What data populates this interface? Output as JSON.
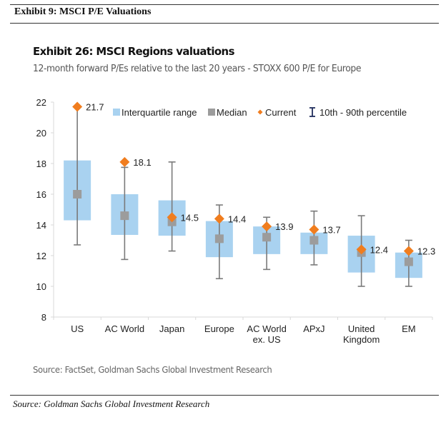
{
  "document": {
    "exhibit_title": "Exhibit 9: MSCI P/E Valuations",
    "source": "Source: Goldman Sachs Global Investment Research"
  },
  "chart_data": {
    "type": "box",
    "title": "Exhibit 26: MSCI Regions valuations",
    "subtitle": "12-month forward P/Es relative to the last 20 years - STOXX 600 P/E for Europe",
    "source": "Source: FactSet, Goldman Sachs Global Investment Research",
    "xlabel": "",
    "ylabel": "",
    "ylim": [
      8,
      22
    ],
    "yticks": [
      "22",
      "20",
      "18",
      "16",
      "14",
      "12",
      "10",
      "8"
    ],
    "ytick_values": [
      22,
      20,
      18,
      16,
      14,
      12,
      10,
      8
    ],
    "grid": false,
    "legend": {
      "placement": "top",
      "items": [
        {
          "label": "Interquartile range",
          "marker": "square",
          "color": "#a9d2f0"
        },
        {
          "label": "Median",
          "marker": "square",
          "color": "#9c9c9c"
        },
        {
          "label": "Current",
          "marker": "diamond",
          "color": "#f07d1e"
        },
        {
          "label": "10th - 90th percentile",
          "marker": "i-beam",
          "color": "#1f2d5c"
        }
      ]
    },
    "categories": [
      [
        "US"
      ],
      [
        "AC World"
      ],
      [
        "Japan"
      ],
      [
        "Europe"
      ],
      [
        "AC World",
        "ex. US"
      ],
      [
        "APxJ"
      ],
      [
        "United",
        "Kingdom"
      ],
      [
        "EM"
      ]
    ],
    "series": [
      {
        "name": "10th percentile",
        "values": [
          12.7,
          11.75,
          12.3,
          10.5,
          11.1,
          11.4,
          10.0,
          10.0
        ]
      },
      {
        "name": "Interquartile low (25th)",
        "values": [
          14.3,
          13.35,
          13.3,
          11.9,
          12.1,
          12.1,
          10.9,
          10.55
        ]
      },
      {
        "name": "Median",
        "values": [
          16.0,
          14.6,
          14.2,
          13.1,
          13.2,
          13.0,
          12.2,
          11.6
        ]
      },
      {
        "name": "Interquartile high (75th)",
        "values": [
          18.2,
          16.0,
          15.6,
          14.25,
          13.9,
          13.5,
          13.3,
          12.2
        ]
      },
      {
        "name": "90th percentile",
        "values": [
          21.7,
          17.75,
          18.1,
          15.3,
          14.5,
          14.9,
          14.6,
          13.0
        ]
      },
      {
        "name": "Current",
        "values": [
          21.7,
          18.1,
          14.5,
          14.4,
          13.9,
          13.7,
          12.4,
          12.3
        ]
      }
    ],
    "current_labels": [
      "21.7",
      "18.1",
      "14.5",
      "14.4",
      "13.9",
      "13.7",
      "12.4",
      "12.3"
    ],
    "colors": {
      "iqr": "#a9d2f0",
      "median": "#9c9c9c",
      "current": "#f07d1e",
      "whisker": "#7a7a7a",
      "axis": "#d9d9d9",
      "text": "#222222"
    }
  }
}
